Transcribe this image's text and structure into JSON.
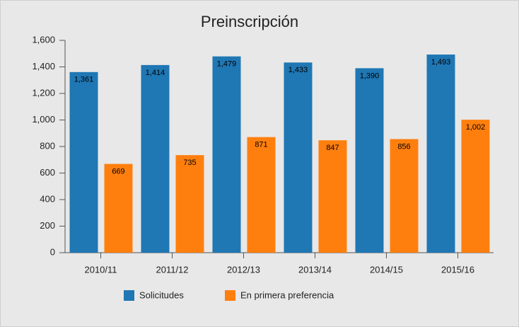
{
  "chart_data": {
    "type": "bar",
    "title": "Preinscripción",
    "categories": [
      "2010/11",
      "2011/12",
      "2012/13",
      "2013/14",
      "2014/15",
      "2015/16"
    ],
    "series": [
      {
        "name": "Solicitudes",
        "color": "#1f77b4",
        "values": [
          1361,
          1414,
          1479,
          1433,
          1390,
          1493
        ],
        "value_labels": [
          "1,361",
          "1,414",
          "1,479",
          "1,433",
          "1,390",
          "1,493"
        ]
      },
      {
        "name": "En primera preferencia",
        "color": "#ff7f0e",
        "values": [
          669,
          735,
          871,
          847,
          856,
          1002
        ],
        "value_labels": [
          "669",
          "735",
          "871",
          "847",
          "856",
          "1,002"
        ]
      }
    ],
    "ylim": [
      0,
      1600
    ],
    "yticks": [
      0,
      200,
      400,
      600,
      800,
      {
        "value": 1000,
        "label": "1,000"
      },
      {
        "value": 1200,
        "label": "1,200"
      },
      {
        "value": 1400,
        "label": "1,400"
      },
      {
        "value": 1600,
        "label": "1,600"
      }
    ],
    "legend": "bottom"
  }
}
